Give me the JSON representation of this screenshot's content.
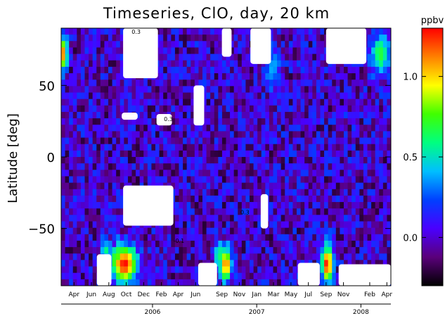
{
  "chart_data": {
    "type": "heatmap",
    "title": "Timeseries, ClO, day, 20 km",
    "ylabel": "Latitude [deg]",
    "xlabel": "",
    "ylim": [
      -90,
      90
    ],
    "y_ticks": [
      50,
      0,
      -50
    ],
    "y_tick_labels": [
      "50",
      "0",
      "−50"
    ],
    "x_start": "2005-02-15",
    "x_end": "2008-04-15",
    "month_ticks": [
      {
        "date": "2005-04-01",
        "label": "Apr"
      },
      {
        "date": "2005-06-01",
        "label": "Jun"
      },
      {
        "date": "2005-08-01",
        "label": "Aug"
      },
      {
        "date": "2005-10-01",
        "label": "Oct"
      },
      {
        "date": "2005-12-01",
        "label": "Dec"
      },
      {
        "date": "2006-02-01",
        "label": "Feb"
      },
      {
        "date": "2006-04-01",
        "label": "Apr"
      },
      {
        "date": "2006-06-01",
        "label": "Jun"
      },
      {
        "date": "2006-09-01",
        "label": "Sep"
      },
      {
        "date": "2006-11-01",
        "label": "Nov"
      },
      {
        "date": "2007-01-01",
        "label": "Jan"
      },
      {
        "date": "2007-03-01",
        "label": "Mar"
      },
      {
        "date": "2007-05-01",
        "label": "May"
      },
      {
        "date": "2007-07-01",
        "label": "Jul"
      },
      {
        "date": "2007-09-01",
        "label": "Sep"
      },
      {
        "date": "2007-11-01",
        "label": "Nov"
      },
      {
        "date": "2008-02-01",
        "label": "Feb"
      },
      {
        "date": "2008-04-01",
        "label": "Apr"
      }
    ],
    "year_ticks": [
      {
        "date": "2006-01-01",
        "label": "2006"
      },
      {
        "date": "2007-01-01",
        "label": "2007"
      },
      {
        "date": "2008-01-01",
        "label": "2008"
      }
    ],
    "colorbar": {
      "label": "ppbv",
      "range": [
        -0.3,
        1.3
      ],
      "ticks": [
        1.0,
        0.5,
        0.0
      ],
      "tick_labels": [
        "1.0",
        "0.5",
        "0.0"
      ],
      "colors": [
        "#000000",
        "#5a007a",
        "#4a00ff",
        "#0040ff",
        "#00bfff",
        "#00ff80",
        "#40ff00",
        "#ffff00",
        "#ff8000",
        "#ff0000"
      ]
    },
    "background_value": 0.0,
    "data_gaps": [
      {
        "t0": "2005-09-20",
        "t1": "2006-01-20",
        "lat0": 55,
        "lat1": 90
      },
      {
        "t0": "2005-09-15",
        "t1": "2005-11-10",
        "lat0": 26,
        "lat1": 31
      },
      {
        "t0": "2006-01-15",
        "t1": "2006-03-10",
        "lat0": 22,
        "lat1": 30
      },
      {
        "t0": "2006-05-25",
        "t1": "2006-07-01",
        "lat0": 22,
        "lat1": 50
      },
      {
        "t0": "2005-09-20",
        "t1": "2006-03-15",
        "lat0": -48,
        "lat1": -20
      },
      {
        "t0": "2007-01-15",
        "t1": "2007-02-10",
        "lat0": -50,
        "lat1": -26
      },
      {
        "t0": "2006-09-01",
        "t1": "2006-10-05",
        "lat0": 70,
        "lat1": 90
      },
      {
        "t0": "2006-12-10",
        "t1": "2007-02-20",
        "lat0": 65,
        "lat1": 90
      },
      {
        "t0": "2007-09-01",
        "t1": "2008-01-20",
        "lat0": 65,
        "lat1": 90
      },
      {
        "t0": "2005-06-20",
        "t1": "2005-08-10",
        "lat0": -90,
        "lat1": -68
      },
      {
        "t0": "2006-06-10",
        "t1": "2006-08-15",
        "lat0": -90,
        "lat1": -74
      },
      {
        "t0": "2007-05-25",
        "t1": "2007-08-10",
        "lat0": -90,
        "lat1": -74
      },
      {
        "t0": "2007-10-15",
        "t1": "2008-04-15",
        "lat0": -90,
        "lat1": -75
      }
    ],
    "enhancements": [
      {
        "t": "2005-09-25",
        "lat": -75,
        "value": 1.3,
        "dt": 32,
        "dlat": 9
      },
      {
        "t": "2006-09-15",
        "lat": -75,
        "value": 1.2,
        "dt": 14,
        "dlat": 8
      },
      {
        "t": "2007-09-05",
        "lat": -75,
        "value": 1.3,
        "dt": 14,
        "dlat": 9
      },
      {
        "t": "2005-02-25",
        "lat": 72,
        "value": 1.2,
        "dt": 8,
        "dlat": 8
      },
      {
        "t": "2008-03-10",
        "lat": 72,
        "value": 0.7,
        "dt": 24,
        "dlat": 10
      },
      {
        "t": "2007-02-25",
        "lat": 62,
        "value": 0.4,
        "dt": 20,
        "dlat": 10
      },
      {
        "t": "2005-07-20",
        "lat": -65,
        "value": 0.6,
        "dt": 12,
        "dlat": 5
      },
      {
        "t": "2006-08-20",
        "lat": -68,
        "value": 0.7,
        "dt": 10,
        "dlat": 6
      }
    ],
    "contour_labels": [
      {
        "t": "2006-02-10",
        "lat": 25,
        "text": "0.3"
      },
      {
        "t": "2006-11-05",
        "lat": -40,
        "text": "0.3"
      },
      {
        "t": "2005-10-20",
        "lat": 93,
        "text": "0.3"
      },
      {
        "t": "2006-03-15",
        "lat": -60,
        "text": "-0.1"
      }
    ]
  }
}
